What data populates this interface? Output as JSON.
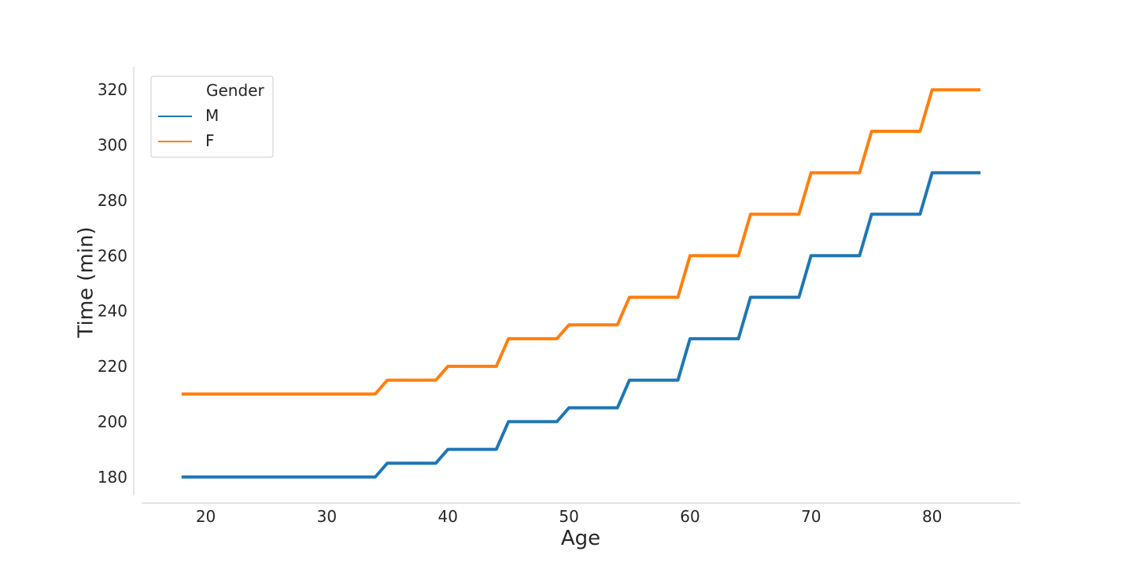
{
  "chart_data": {
    "type": "line",
    "title": "",
    "xlabel": "Age",
    "ylabel": "Time (min)",
    "xlim": [
      14.7,
      87.3
    ],
    "ylim": [
      173.4,
      328.3
    ],
    "xticks": [
      20,
      30,
      40,
      50,
      60,
      70,
      80
    ],
    "yticks": [
      180,
      200,
      220,
      240,
      260,
      280,
      300,
      320
    ],
    "grid": false,
    "legend": {
      "title": "Gender",
      "placement": "top-left"
    },
    "x": [
      18,
      19,
      20,
      21,
      22,
      23,
      24,
      25,
      26,
      27,
      28,
      29,
      30,
      31,
      32,
      33,
      34,
      35,
      36,
      37,
      38,
      39,
      40,
      41,
      42,
      43,
      44,
      45,
      46,
      47,
      48,
      49,
      50,
      51,
      52,
      53,
      54,
      55,
      56,
      57,
      58,
      59,
      60,
      61,
      62,
      63,
      64,
      65,
      66,
      67,
      68,
      69,
      70,
      71,
      72,
      73,
      74,
      75,
      76,
      77,
      78,
      79,
      80,
      81,
      82,
      83,
      84
    ],
    "series": [
      {
        "name": "M",
        "color": "#1f77b4",
        "values": [
          180,
          180,
          180,
          180,
          180,
          180,
          180,
          180,
          180,
          180,
          180,
          180,
          180,
          180,
          180,
          180,
          180,
          185,
          185,
          185,
          185,
          185,
          190,
          190,
          190,
          190,
          190,
          200,
          200,
          200,
          200,
          200,
          205,
          205,
          205,
          205,
          205,
          215,
          215,
          215,
          215,
          215,
          230,
          230,
          230,
          230,
          230,
          245,
          245,
          245,
          245,
          245,
          260,
          260,
          260,
          260,
          260,
          275,
          275,
          275,
          275,
          275,
          290,
          290,
          290,
          290,
          290
        ]
      },
      {
        "name": "F",
        "color": "#ff7f0e",
        "values": [
          210,
          210,
          210,
          210,
          210,
          210,
          210,
          210,
          210,
          210,
          210,
          210,
          210,
          210,
          210,
          210,
          210,
          215,
          215,
          215,
          215,
          215,
          220,
          220,
          220,
          220,
          220,
          230,
          230,
          230,
          230,
          230,
          235,
          235,
          235,
          235,
          235,
          245,
          245,
          245,
          245,
          245,
          260,
          260,
          260,
          260,
          260,
          275,
          275,
          275,
          275,
          275,
          290,
          290,
          290,
          290,
          290,
          305,
          305,
          305,
          305,
          305,
          320,
          320,
          320,
          320,
          320
        ]
      }
    ]
  }
}
